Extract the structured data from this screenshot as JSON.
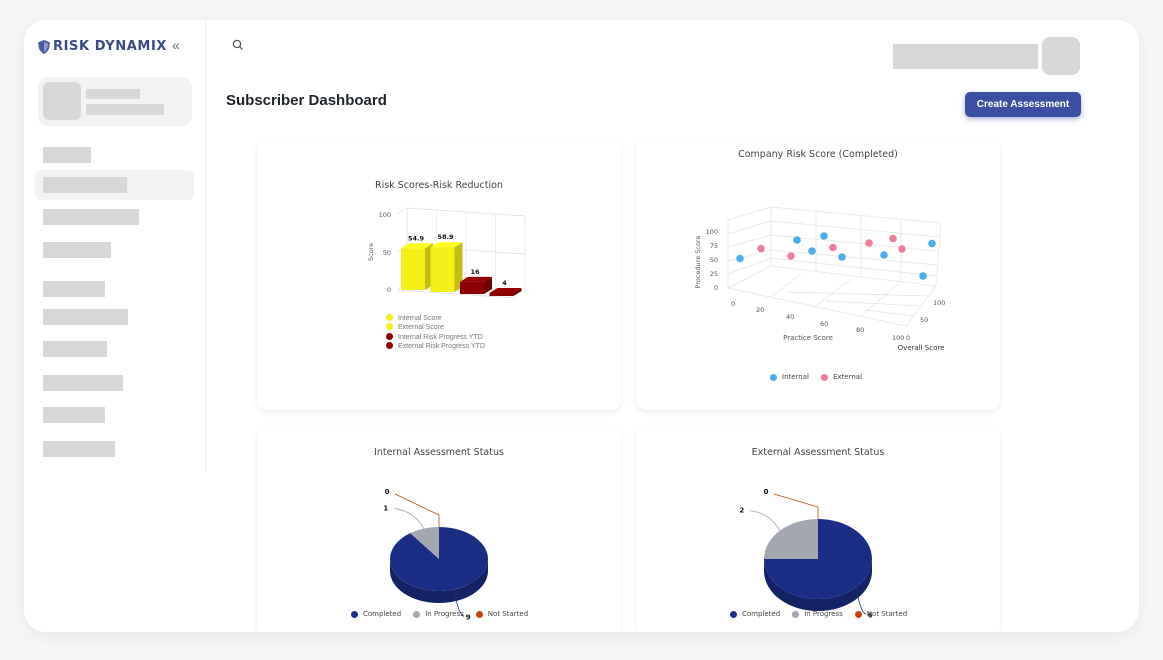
{
  "brand": {
    "name": "RISK DYNAMIX",
    "collapse_icon": "«"
  },
  "header": {
    "title": "Subscriber Dashboard",
    "create_button": "Create Assessment"
  },
  "colors": {
    "accent": "#3b4fa3",
    "yellow": "#f5ee19",
    "darkred": "#8b0000",
    "navy": "#1b2e86",
    "gray": "#a3a7af",
    "orange": "#c0460d",
    "blue": "#4aaeeb",
    "pink": "#f07e99"
  },
  "charts": {
    "risk": {
      "title": "Risk Scores-Risk Reduction",
      "ylabel": "Score",
      "yticks": [
        "100",
        "50",
        "0"
      ],
      "legend": [
        "Internal Score",
        "External Score",
        "Internal Risk Progress YTD",
        "External Risk Progress YTD"
      ]
    },
    "company": {
      "title": "Company Risk Score (Completed)",
      "ylabel": "Procedure Score",
      "xlabel": "Practice Score",
      "zlabel": "Overall Score",
      "yticks": [
        "100",
        "75",
        "50",
        "25",
        "0"
      ],
      "xticks": [
        "0",
        "20",
        "40",
        "60",
        "80",
        "100"
      ],
      "zticks": [
        "100",
        "50",
        "0"
      ],
      "legend": [
        "Internal",
        "External"
      ]
    },
    "internal_status": {
      "title": "Internal Assessment Status",
      "legend": [
        "Completed",
        "In Progress",
        "Not Started"
      ]
    },
    "external_status": {
      "title": "External Assessment Status",
      "legend": [
        "Completed",
        "In Progress",
        "Not Started"
      ]
    }
  },
  "chart_data": [
    {
      "type": "bar",
      "title": "Risk Scores-Risk Reduction",
      "ylabel": "Score",
      "ylim": [
        0,
        100
      ],
      "categories": [
        "Internal Score",
        "External Score",
        "Internal Risk Progress YTD",
        "External Risk Progress YTD"
      ],
      "values": [
        54.9,
        58.9,
        16,
        4
      ],
      "value_labels": [
        "54.9",
        "58.9",
        "16",
        "4"
      ],
      "colors": [
        "#f5ee19",
        "#f5ee19",
        "#8b0000",
        "#8b0000"
      ]
    },
    {
      "type": "scatter",
      "title": "Company Risk Score (Completed)",
      "xlabel": "Practice Score",
      "ylabel": "Procedure Score",
      "zlabel": "Overall Score",
      "series": [
        {
          "name": "Internal",
          "color": "#4aaeeb",
          "points": [
            [
              -1.6,
              0.15
            ],
            [
              -0.65,
              0.52
            ],
            [
              -0.2,
              0.6
            ],
            [
              -0.4,
              0.3
            ],
            [
              0.1,
              0.18
            ],
            [
              0.8,
              0.22
            ],
            [
              1.6,
              0.45
            ],
            [
              1.45,
              -0.2
            ]
          ]
        },
        {
          "name": "External",
          "color": "#f07e99",
          "points": [
            [
              -1.25,
              0.35
            ],
            [
              -0.75,
              0.2
            ],
            [
              -0.05,
              0.37
            ],
            [
              0.55,
              0.46
            ],
            [
              0.95,
              0.55
            ],
            [
              1.1,
              0.34
            ]
          ]
        }
      ]
    },
    {
      "type": "pie",
      "title": "Internal Assessment Status",
      "categories": [
        "Completed",
        "In Progress",
        "Not Started"
      ],
      "values": [
        9,
        1,
        0
      ],
      "value_labels": [
        "9",
        "1",
        "0"
      ],
      "colors": [
        "#1b2e86",
        "#a3a7af",
        "#c0460d"
      ]
    },
    {
      "type": "pie",
      "title": "External Assessment Status",
      "categories": [
        "Completed",
        "In Progress",
        "Not Started"
      ],
      "values": [
        6,
        2,
        0
      ],
      "value_labels": [
        "6",
        "2",
        "0"
      ],
      "colors": [
        "#1b2e86",
        "#a3a7af",
        "#c0460d"
      ]
    }
  ]
}
